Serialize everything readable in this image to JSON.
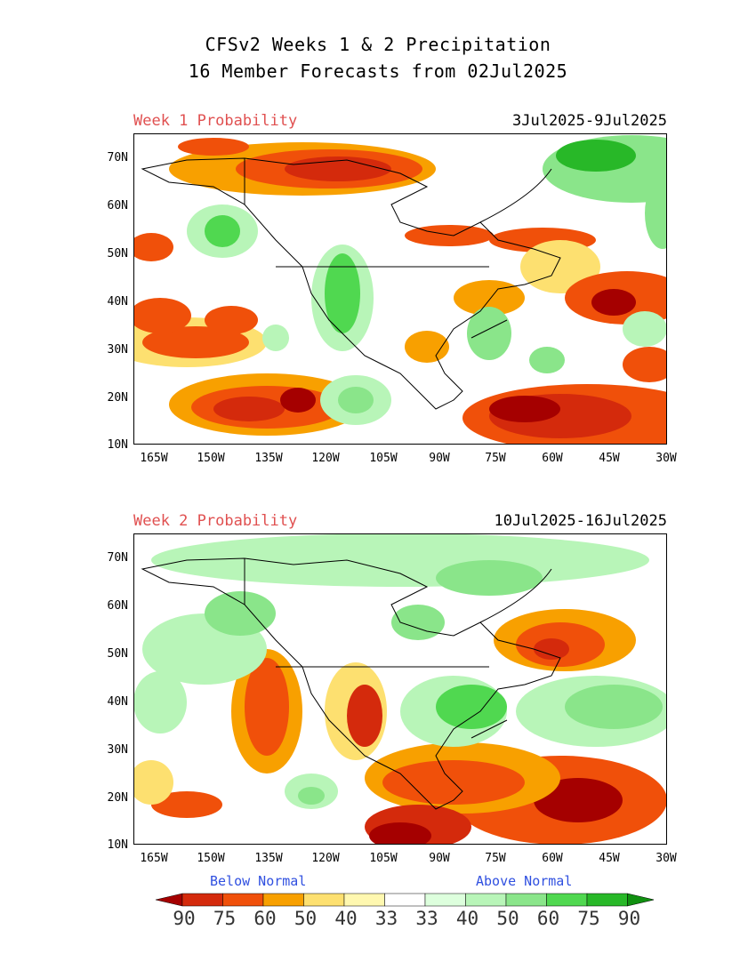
{
  "title_line1": "CFSv2 Weeks 1 & 2 Precipitation",
  "title_line2": "16 Member Forecasts from 02Jul2025",
  "panels": [
    {
      "label": "Week 1 Probability",
      "dates": "3Jul2025-9Jul2025"
    },
    {
      "label": "Week 2 Probability",
      "dates": "10Jul2025-16Jul2025"
    }
  ],
  "lat_ticks": [
    "70N",
    "60N",
    "50N",
    "40N",
    "30N",
    "20N",
    "10N"
  ],
  "lon_ticks": [
    "165W",
    "150W",
    "135W",
    "120W",
    "105W",
    "90W",
    "75W",
    "60W",
    "45W",
    "30W"
  ],
  "legend": {
    "below_label": "Below Normal",
    "above_label": "Above Normal",
    "values": [
      "90",
      "75",
      "60",
      "50",
      "40",
      "33",
      "33",
      "40",
      "50",
      "60",
      "75",
      "90"
    ],
    "colors": [
      "#a50000",
      "#d42a0c",
      "#f0500a",
      "#f8a000",
      "#fde070",
      "#fff8b0",
      "#ffffff",
      "#ddffdd",
      "#b8f5b8",
      "#8ae58a",
      "#50d850",
      "#28b828",
      "#109010"
    ]
  }
}
